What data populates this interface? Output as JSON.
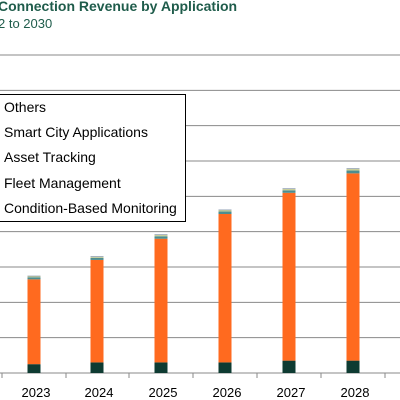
{
  "header": {
    "title": "Connection Revenue by Application",
    "subtitle": "2 to 2030"
  },
  "chart_data": {
    "type": "bar",
    "stacked": true,
    "title": "Connection Revenue by Application",
    "subtitle": "2 to 2030",
    "categories": [
      "2023",
      "2024",
      "2025",
      "2026",
      "2027",
      "2028"
    ],
    "series": [
      {
        "name": "Condition-Based Monitoring",
        "color": "#0e3b32",
        "values": [
          0.25,
          0.3,
          0.3,
          0.3,
          0.35,
          0.35
        ]
      },
      {
        "name": "Fleet Management",
        "color": "#ff6a1f",
        "values": [
          2.4,
          2.9,
          3.5,
          4.2,
          4.75,
          5.3
        ]
      },
      {
        "name": "Asset Tracking",
        "color": "#4d8d8f",
        "values": [
          0.06,
          0.06,
          0.07,
          0.07,
          0.07,
          0.08
        ]
      },
      {
        "name": "Smart City Applications",
        "color": "#c8ce9a",
        "values": [
          0.03,
          0.03,
          0.04,
          0.04,
          0.04,
          0.05
        ]
      },
      {
        "name": "Others",
        "color": "#1a3a6b",
        "values": [
          0.01,
          0.01,
          0.01,
          0.01,
          0.01,
          0.01
        ]
      }
    ],
    "legend_order": [
      "Others",
      "Smart City Applications",
      "Asset Tracking",
      "Fleet Management",
      "Condition-Based Monitoring"
    ],
    "legend_position": "top-left",
    "grid": true,
    "ylim": [
      0,
      9
    ]
  }
}
